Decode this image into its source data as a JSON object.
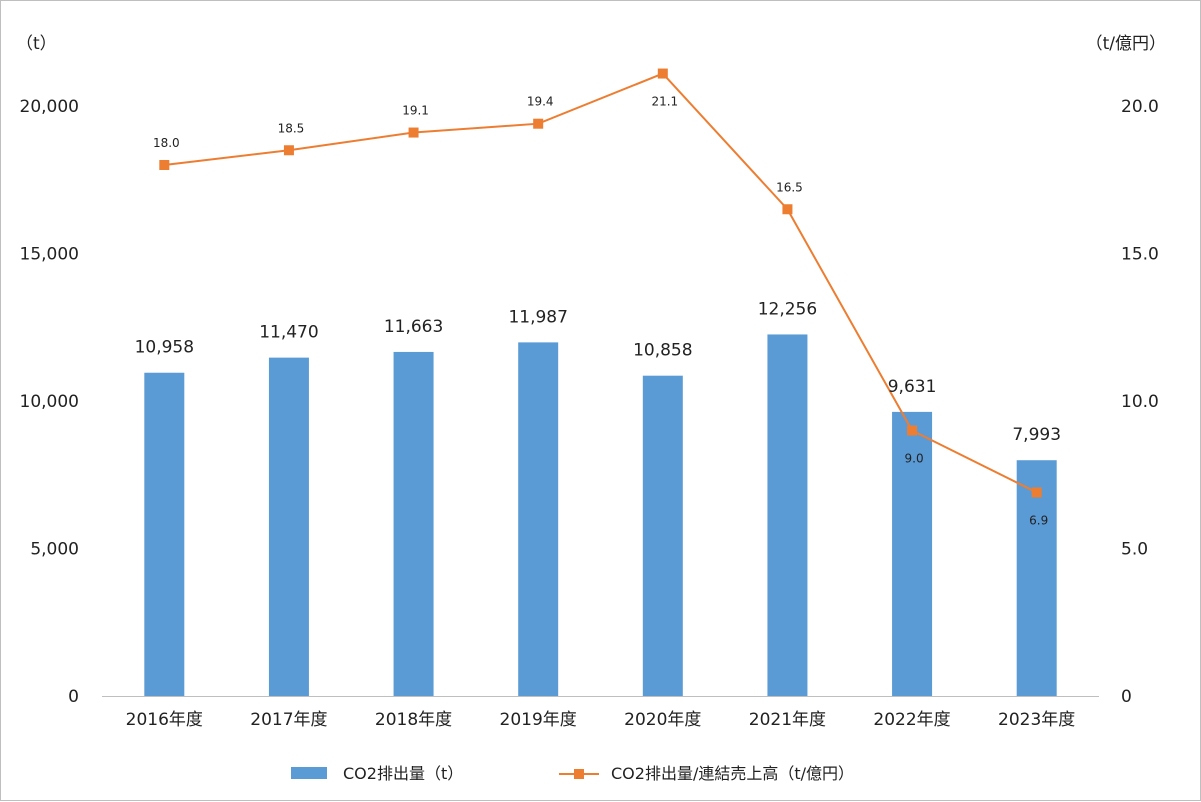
{
  "chart_data": {
    "type": "bar",
    "categories": [
      "2016年度",
      "2017年度",
      "2018年度",
      "2019年度",
      "2020年度",
      "2021年度",
      "2022年度",
      "2023年度"
    ],
    "series": [
      {
        "name": "CO2排出量（t）",
        "type": "bar",
        "axis": "left",
        "color": "#5b9bd5",
        "values": [
          10958,
          11470,
          11663,
          11987,
          10858,
          12256,
          9631,
          7993
        ],
        "labels": [
          "10,958",
          "11,470",
          "11,663",
          "11,987",
          "10,858",
          "12,256",
          "9,631",
          "7,993"
        ]
      },
      {
        "name": "CO2排出量/連結売上高（t/億円）",
        "type": "line",
        "axis": "right",
        "color": "#ed7d31",
        "values": [
          18.0,
          18.5,
          19.1,
          19.4,
          21.1,
          16.5,
          9.0,
          6.9
        ],
        "labels": [
          "18.0",
          "18.5",
          "19.1",
          "19.4",
          "21.1",
          "16.5",
          "9.0",
          "6.9"
        ]
      }
    ],
    "left_axis": {
      "unit": "（t）",
      "ylim": [
        0,
        20000
      ],
      "ticks": [
        0,
        5000,
        10000,
        15000,
        20000
      ],
      "tick_labels": [
        "0",
        "5,000",
        "10,000",
        "15,000",
        "20,000"
      ]
    },
    "right_axis": {
      "unit": "（t/億円）",
      "ylim": [
        0,
        20
      ],
      "ticks": [
        0,
        5,
        10,
        15,
        20
      ],
      "tick_labels": [
        "0",
        "5.0",
        "10.0",
        "15.0",
        "20.0"
      ]
    },
    "legend": {
      "position": "bottom-center",
      "items": [
        "CO2排出量（t）",
        "CO2排出量/連結売上高（t/億円）"
      ]
    },
    "grid": false
  }
}
